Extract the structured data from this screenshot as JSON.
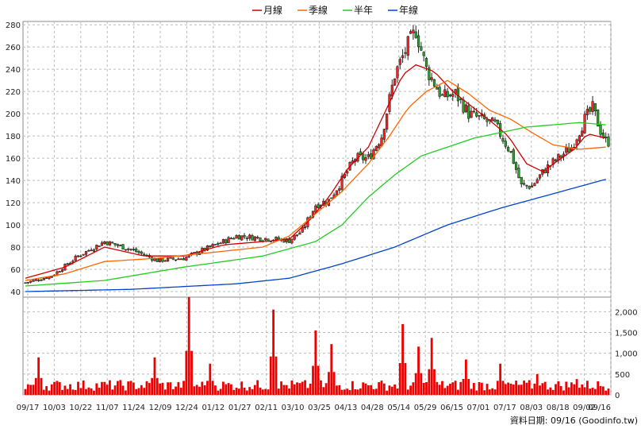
{
  "chart_data": {
    "type": "candlestick",
    "legend": {
      "placement": "top-center",
      "items": [
        {
          "label": "月線",
          "color": "#cc0000"
        },
        {
          "label": "季線",
          "color": "#ff6600"
        },
        {
          "label": "半年",
          "color": "#22cc22"
        },
        {
          "label": "年線",
          "color": "#0044cc"
        }
      ]
    },
    "price_axis": {
      "ylim": [
        35,
        283
      ],
      "ticks": [
        40,
        60,
        80,
        100,
        120,
        140,
        160,
        180,
        200,
        220,
        240,
        260,
        280
      ],
      "position": "left"
    },
    "volume_axis": {
      "ylim": [
        0,
        2350
      ],
      "ticks": [
        0,
        500,
        1000,
        1500,
        2000
      ],
      "tick_labels": [
        "0",
        "500",
        "1,000",
        "1,500",
        "2,000"
      ],
      "position": "right"
    },
    "x_tick_labels": [
      "09/17",
      "10/03",
      "10/22",
      "11/07",
      "11/24",
      "12/09",
      "12/24",
      "01/12",
      "01/27",
      "02/11",
      "03/10",
      "03/25",
      "04/13",
      "04/28",
      "05/14",
      "05/29",
      "06/15",
      "07/01",
      "07/17",
      "08/03",
      "08/18",
      "09/02",
      "09/16"
    ],
    "price_close_samples": [
      [
        0,
        48
      ],
      [
        10,
        54
      ],
      [
        20,
        72
      ],
      [
        30,
        85
      ],
      [
        40,
        78
      ],
      [
        50,
        68
      ],
      [
        60,
        70
      ],
      [
        70,
        80
      ],
      [
        80,
        90
      ],
      [
        90,
        88
      ],
      [
        100,
        86
      ],
      [
        105,
        95
      ],
      [
        110,
        118
      ],
      [
        115,
        122
      ],
      [
        120,
        140
      ],
      [
        125,
        160
      ],
      [
        130,
        160
      ],
      [
        135,
        180
      ],
      [
        140,
        235
      ],
      [
        145,
        262
      ],
      [
        148,
        275
      ],
      [
        152,
        240
      ],
      [
        158,
        215
      ],
      [
        163,
        218
      ],
      [
        168,
        200
      ],
      [
        173,
        195
      ],
      [
        178,
        190
      ],
      [
        184,
        165
      ],
      [
        188,
        135
      ],
      [
        192,
        135
      ],
      [
        197,
        150
      ],
      [
        202,
        160
      ],
      [
        207,
        170
      ],
      [
        212,
        195
      ],
      [
        215,
        205
      ],
      [
        218,
        185
      ],
      [
        220,
        175
      ]
    ],
    "moving_averages": {
      "月線": [
        [
          0,
          52
        ],
        [
          15,
          62
        ],
        [
          30,
          80
        ],
        [
          45,
          72
        ],
        [
          60,
          72
        ],
        [
          75,
          82
        ],
        [
          90,
          85
        ],
        [
          100,
          87
        ],
        [
          108,
          105
        ],
        [
          115,
          125
        ],
        [
          122,
          150
        ],
        [
          130,
          170
        ],
        [
          137,
          205
        ],
        [
          143,
          235
        ],
        [
          148,
          244
        ],
        [
          155,
          238
        ],
        [
          162,
          220
        ],
        [
          170,
          205
        ],
        [
          177,
          192
        ],
        [
          183,
          180
        ],
        [
          190,
          155
        ],
        [
          196,
          148
        ],
        [
          202,
          158
        ],
        [
          208,
          168
        ],
        [
          213,
          182
        ],
        [
          220,
          178
        ]
      ],
      "季線": [
        [
          0,
          50
        ],
        [
          15,
          56
        ],
        [
          30,
          67
        ],
        [
          50,
          70
        ],
        [
          70,
          75
        ],
        [
          90,
          80
        ],
        [
          100,
          90
        ],
        [
          110,
          110
        ],
        [
          120,
          130
        ],
        [
          130,
          155
        ],
        [
          138,
          180
        ],
        [
          145,
          205
        ],
        [
          152,
          220
        ],
        [
          160,
          230
        ],
        [
          168,
          218
        ],
        [
          176,
          203
        ],
        [
          184,
          195
        ],
        [
          192,
          183
        ],
        [
          200,
          172
        ],
        [
          210,
          168
        ],
        [
          220,
          170
        ]
      ],
      "半年": [
        [
          0,
          45
        ],
        [
          30,
          50
        ],
        [
          60,
          62
        ],
        [
          90,
          72
        ],
        [
          110,
          85
        ],
        [
          120,
          100
        ],
        [
          130,
          125
        ],
        [
          140,
          145
        ],
        [
          150,
          162
        ],
        [
          160,
          170
        ],
        [
          170,
          178
        ],
        [
          180,
          183
        ],
        [
          190,
          188
        ],
        [
          200,
          190
        ],
        [
          210,
          192
        ],
        [
          220,
          190
        ]
      ],
      "年線": [
        [
          0,
          40
        ],
        [
          40,
          42
        ],
        [
          80,
          47
        ],
        [
          100,
          52
        ],
        [
          120,
          65
        ],
        [
          140,
          80
        ],
        [
          160,
          100
        ],
        [
          180,
          115
        ],
        [
          200,
          128
        ],
        [
          220,
          141
        ]
      ]
    },
    "volume_peak_samples": [
      [
        5,
        900
      ],
      [
        49,
        900
      ],
      [
        62,
        2350
      ],
      [
        70,
        750
      ],
      [
        94,
        2050
      ],
      [
        110,
        1550
      ],
      [
        116,
        1220
      ],
      [
        143,
        1700
      ],
      [
        149,
        1160
      ],
      [
        154,
        1370
      ],
      [
        167,
        850
      ],
      [
        180,
        750
      ],
      [
        194,
        500
      ],
      [
        209,
        380
      ]
    ]
  },
  "footer": {
    "date_label": "資料日期: 09/16 (Goodinfo.tw)"
  }
}
